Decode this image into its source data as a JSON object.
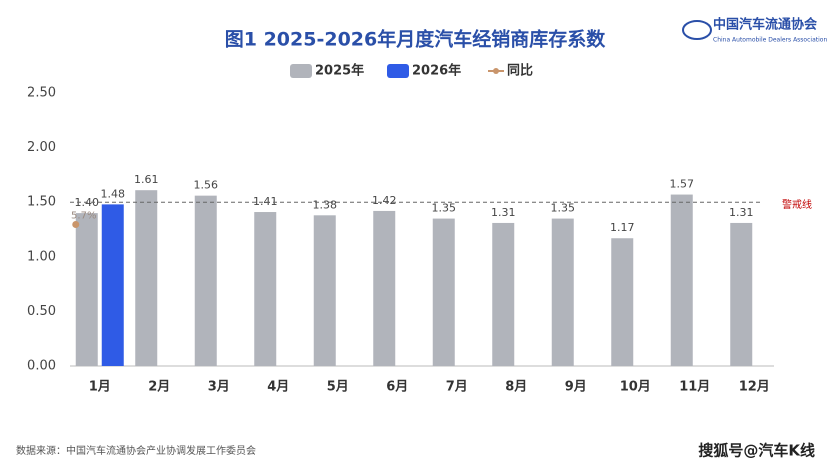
{
  "chart_data": {
    "type": "bar",
    "title": "图1  2025-2026年月度汽车经销商库存系数",
    "logo": {
      "name": "中国汽车流通协会",
      "subtitle": "China Automobile Dealers Association"
    },
    "categories": [
      "1月",
      "2月",
      "3月",
      "4月",
      "5月",
      "6月",
      "7月",
      "8月",
      "9月",
      "10月",
      "11月",
      "12月"
    ],
    "series": [
      {
        "name": "2025年",
        "color": "#b1b4bb",
        "values": [
          1.4,
          1.61,
          1.56,
          1.41,
          1.38,
          1.42,
          1.35,
          1.31,
          1.35,
          1.17,
          1.57,
          1.31
        ],
        "value_labels": [
          "1.40",
          "1.61",
          "1.56",
          "1.41",
          "1.38",
          "1.42",
          "1.35",
          "1.31",
          "1.35",
          "1.17",
          "1.57",
          "1.31"
        ]
      },
      {
        "name": "2026年",
        "color": "#2f5be6",
        "values": [
          1.48,
          null,
          null,
          null,
          null,
          null,
          null,
          null,
          null,
          null,
          null,
          null
        ],
        "value_labels": [
          "1.48",
          null,
          null,
          null,
          null,
          null,
          null,
          null,
          null,
          null,
          null,
          null
        ]
      },
      {
        "name": "同比",
        "type": "line",
        "axis": "y2",
        "color": "#c9956b",
        "values": [
          5.7,
          null,
          null,
          null,
          null,
          null,
          null,
          null,
          null,
          null,
          null,
          null
        ],
        "value_labels": [
          "5.7%",
          null,
          null,
          null,
          null,
          null,
          null,
          null,
          null,
          null,
          null,
          null
        ]
      }
    ],
    "ylim": [
      0,
      2.5
    ],
    "yticks": [
      {
        "value": 0,
        "label": "0.00"
      },
      {
        "value": 0.5,
        "label": "0.50"
      },
      {
        "value": 1,
        "label": "1.00"
      },
      {
        "value": 1.5,
        "label": "1.50"
      },
      {
        "value": 2,
        "label": "2.00"
      },
      {
        "value": 2.5,
        "label": "2.50"
      }
    ],
    "y2lim": [
      0,
      11
    ],
    "reference_line": {
      "value": 1.5,
      "label": "警戒线"
    },
    "legend": "top",
    "source": "数据来源：中国汽车流通协会产业协调发展工作委员会",
    "watermark": "搜狐号@汽车K线"
  }
}
